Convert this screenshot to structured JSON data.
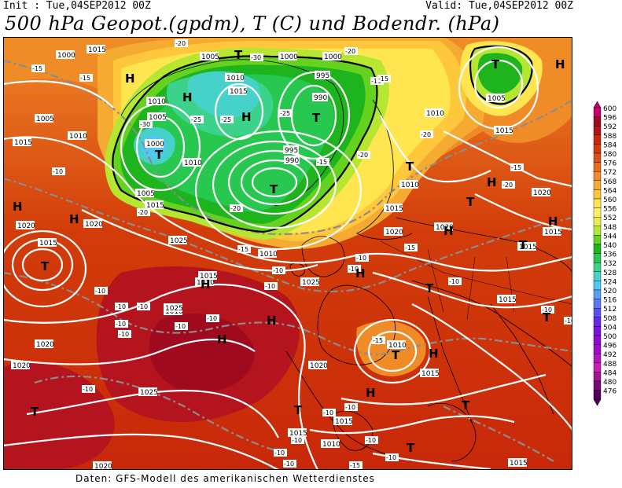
{
  "header": {
    "init": "Init : Tue,04SEP2012 00Z",
    "valid": "Valid: Tue,04SEP2012 00Z",
    "title": "500 hPa Geopot.(gpdm), T (C) und Bodendr. (hPa)"
  },
  "footer": "Daten: GFS-Modell des amerikanischen Wetterdienstes",
  "colorbar": {
    "levels": [
      "600",
      "596",
      "592",
      "588",
      "584",
      "580",
      "576",
      "572",
      "568",
      "564",
      "560",
      "556",
      "552",
      "548",
      "544",
      "540",
      "536",
      "532",
      "528",
      "524",
      "520",
      "516",
      "512",
      "508",
      "504",
      "500",
      "496",
      "492",
      "488",
      "484",
      "480",
      "476"
    ],
    "colors": [
      "#c8006e",
      "#a00a1e",
      "#b4141e",
      "#c8280a",
      "#d23c0a",
      "#dc5014",
      "#e66e1e",
      "#f08c28",
      "#f5aa32",
      "#ffc83c",
      "#ffe650",
      "#fff064",
      "#e6f04b",
      "#b4e632",
      "#64d21e",
      "#1eb41e",
      "#28c850",
      "#3cd28c",
      "#46d2c8",
      "#50c8f0",
      "#5aa0f0",
      "#5a78f0",
      "#5a50f0",
      "#6428e6",
      "#7814dc",
      "#8c0ad2",
      "#a00ac8",
      "#b414be",
      "#c81eb4",
      "#a01496",
      "#780a78",
      "#50005a"
    ]
  },
  "pressure_labels": [
    "1000",
    "1015",
    "1005",
    "1000",
    "1000",
    "995",
    "990",
    "1010",
    "1015",
    "1010",
    "1005",
    "1000",
    "1010",
    "1015",
    "1010",
    "1005",
    "1010",
    "995",
    "990",
    "1005",
    "1015",
    "1020",
    "1010",
    "1015",
    "1015",
    "1020",
    "1005",
    "1015",
    "1020",
    "1025",
    "1020",
    "1010",
    "1015",
    "1020",
    "1025",
    "1020",
    "1015",
    "1015",
    "1010",
    "1015",
    "1020",
    "1025",
    "1010",
    "1020",
    "1015",
    "1015",
    "1020",
    "1025",
    "1015",
    "1010",
    "1020",
    "1015"
  ],
  "temp_labels": [
    "-20",
    "-30",
    "-25",
    "-20",
    "-25",
    "-15",
    "-20",
    "-15",
    "-15",
    "-10",
    "-25",
    "-30",
    "-20",
    "-15",
    "-20",
    "-15",
    "-10",
    "-20",
    "-10",
    "-10",
    "-15",
    "-20",
    "-10",
    "-15",
    "-10",
    "-10",
    "-10",
    "-10",
    "-10",
    "-15",
    "-10",
    "-10",
    "-10",
    "-10",
    "-10",
    "-10",
    "-10",
    "-10",
    "-10",
    "-10",
    "-10",
    "-15",
    "-10",
    "-10",
    "-10"
  ],
  "high_symbol": "H",
  "low_symbol": "T"
}
